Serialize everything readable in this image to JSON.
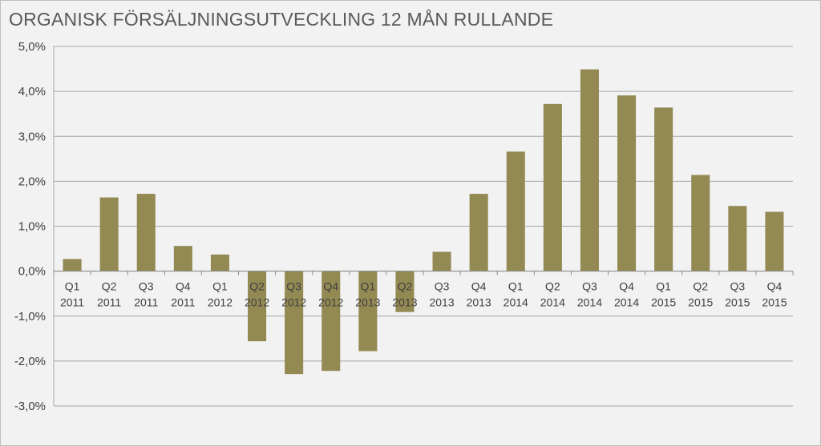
{
  "chart_data": {
    "type": "bar",
    "title": "ORGANISK FÖRSÄLJNINGSUTVECKLING 12 MÅN RULLANDE",
    "xlabel": "",
    "ylabel": "",
    "categories": [
      [
        "Q1",
        "2011"
      ],
      [
        "Q2",
        "2011"
      ],
      [
        "Q3",
        "2011"
      ],
      [
        "Q4",
        "2011"
      ],
      [
        "Q1",
        "2012"
      ],
      [
        "Q2",
        "2012"
      ],
      [
        "Q3",
        "2012"
      ],
      [
        "Q4",
        "2012"
      ],
      [
        "Q1",
        "2013"
      ],
      [
        "Q2",
        "2013"
      ],
      [
        "Q3",
        "2013"
      ],
      [
        "Q4",
        "2013"
      ],
      [
        "Q1",
        "2014"
      ],
      [
        "Q2",
        "2014"
      ],
      [
        "Q3",
        "2014"
      ],
      [
        "Q4",
        "2014"
      ],
      [
        "Q1",
        "2015"
      ],
      [
        "Q2",
        "2015"
      ],
      [
        "Q3",
        "2015"
      ],
      [
        "Q4",
        "2015"
      ]
    ],
    "values": [
      0.27,
      1.64,
      1.72,
      0.56,
      0.37,
      -1.56,
      -2.29,
      -2.22,
      -1.78,
      -0.91,
      0.43,
      1.72,
      2.66,
      3.72,
      4.49,
      3.91,
      3.64,
      2.14,
      1.45,
      1.32
    ],
    "ylim": [
      -3.0,
      5.0
    ],
    "yticks": [
      5.0,
      4.0,
      3.0,
      2.0,
      1.0,
      0.0,
      -1.0,
      -2.0,
      -3.0
    ],
    "ytick_labels": [
      "5,0%",
      "4,0%",
      "3,0%",
      "2,0%",
      "1,0%",
      "0,0%",
      "-1,0%",
      "-2,0%",
      "-3,0%"
    ],
    "grid": true,
    "legend": "none",
    "bar_color": "#938953",
    "grid_color": "#a6a6a6",
    "background": "#f2f2f2"
  }
}
